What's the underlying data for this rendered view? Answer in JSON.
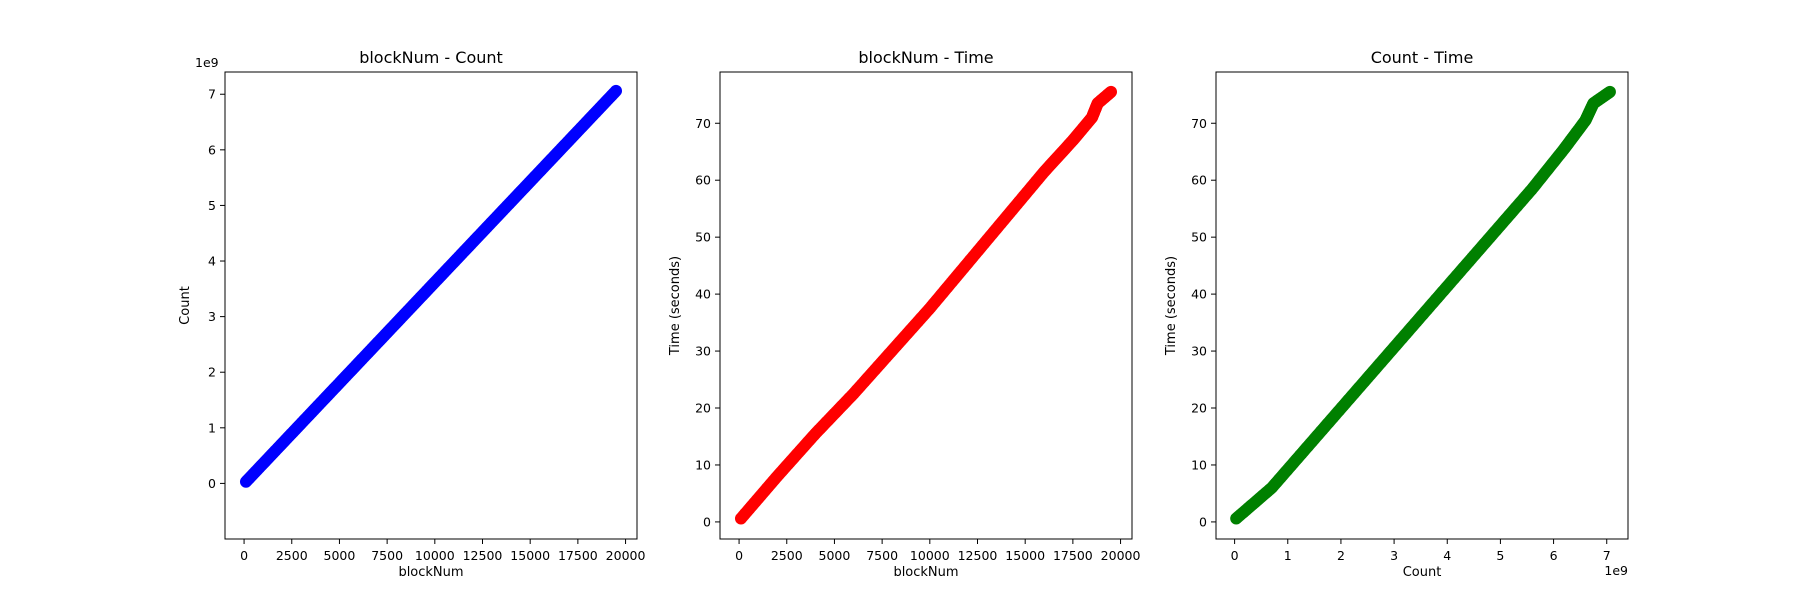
{
  "chart_data": [
    {
      "type": "scatter",
      "title": "blockNum - Count",
      "xlabel": "blockNum",
      "ylabel": "Count",
      "xlim": [
        -1000,
        20600
      ],
      "ylim": [
        -1.0,
        7.4
      ],
      "x_ticks": [
        0,
        2500,
        5000,
        7500,
        10000,
        12500,
        15000,
        17500,
        20000
      ],
      "x_tick_labels": [
        "0",
        "2500",
        "5000",
        "7500",
        "10000",
        "12500",
        "15000",
        "17500",
        "20000"
      ],
      "y_ticks": [
        0,
        1,
        2,
        3,
        4,
        5,
        6,
        7
      ],
      "y_tick_labels": [
        "0",
        "1",
        "2",
        "3",
        "4",
        "5",
        "6",
        "7"
      ],
      "x_offset_label": "",
      "y_offset_label": "1e9",
      "color": "#0000ff",
      "grid": false,
      "series": [
        {
          "x": [
            100,
            19500
          ],
          "y": [
            0.03,
            7.06
          ],
          "samples": 300
        }
      ]
    },
    {
      "type": "scatter",
      "title": "blockNum - Time",
      "xlabel": "blockNum",
      "ylabel": "Time (seconds)",
      "xlim": [
        -1000,
        20600
      ],
      "ylim": [
        -3.0,
        79.0
      ],
      "x_ticks": [
        0,
        2500,
        5000,
        7500,
        10000,
        12500,
        15000,
        17500,
        20000
      ],
      "x_tick_labels": [
        "0",
        "2500",
        "5000",
        "7500",
        "10000",
        "12500",
        "15000",
        "17500",
        "20000"
      ],
      "y_ticks": [
        0,
        10,
        20,
        30,
        40,
        50,
        60,
        70
      ],
      "y_tick_labels": [
        "0",
        "10",
        "20",
        "30",
        "40",
        "50",
        "60",
        "70"
      ],
      "x_offset_label": "",
      "y_offset_label": "",
      "color": "#ff0000",
      "grid": false,
      "series": [
        {
          "x": [
            100,
            2000,
            4000,
            6000,
            8000,
            10000,
            12000,
            14000,
            16000,
            17500,
            18500,
            18800,
            19500
          ],
          "y": [
            0.6,
            8.0,
            15.5,
            22.5,
            30.0,
            37.5,
            45.5,
            53.5,
            61.5,
            67.0,
            71.0,
            73.5,
            75.5
          ],
          "samples": 300
        }
      ]
    },
    {
      "type": "scatter",
      "title": "Count - Time",
      "xlabel": "Count",
      "ylabel": "Time (seconds)",
      "xlim": [
        -0.35,
        7.4
      ],
      "ylim": [
        -3.0,
        79.0
      ],
      "x_ticks": [
        0,
        1,
        2,
        3,
        4,
        5,
        6,
        7
      ],
      "x_tick_labels": [
        "0",
        "1",
        "2",
        "3",
        "4",
        "5",
        "6",
        "7"
      ],
      "y_ticks": [
        0,
        10,
        20,
        30,
        40,
        50,
        60,
        70
      ],
      "y_tick_labels": [
        "0",
        "10",
        "20",
        "30",
        "40",
        "50",
        "60",
        "70"
      ],
      "x_offset_label": "1e9",
      "y_offset_label": "",
      "color": "#008000",
      "grid": false,
      "series": [
        {
          "x": [
            0.03,
            0.7,
            1.4,
            2.1,
            2.8,
            3.5,
            4.2,
            4.9,
            5.6,
            6.2,
            6.6,
            6.75,
            7.06
          ],
          "y": [
            0.6,
            6.0,
            13.5,
            21.0,
            28.5,
            36.0,
            43.5,
            51.0,
            58.5,
            65.5,
            70.5,
            73.5,
            75.5
          ],
          "samples": 300
        }
      ]
    }
  ]
}
